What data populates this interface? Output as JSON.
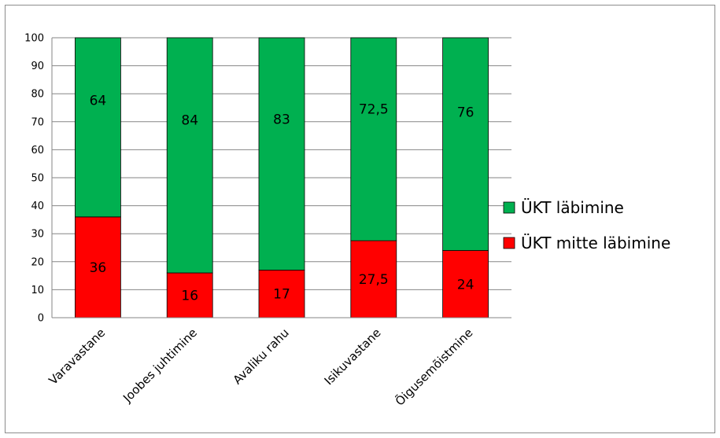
{
  "chart_data": {
    "type": "bar",
    "stacked": true,
    "categories": [
      "Varavastane",
      "Joobes juhtimine",
      "Avaliku rahu",
      "Isikuvastane",
      "Õigusemõistmine"
    ],
    "series": [
      {
        "name": "ÜKT mitte läbimine",
        "color": "#ff0000",
        "values": [
          36,
          16,
          17,
          27.5,
          24
        ],
        "labels": [
          "36",
          "16",
          "17",
          "27,5",
          "24"
        ]
      },
      {
        "name": "ÜKT läbimine",
        "color": "#00b050",
        "values": [
          64,
          84,
          83,
          72.5,
          76
        ],
        "labels": [
          "64",
          "84",
          "83",
          "72,5",
          "76"
        ]
      }
    ],
    "ylim": [
      0,
      100
    ],
    "yticks": [
      "0",
      "10",
      "20",
      "30",
      "40",
      "50",
      "60",
      "70",
      "80",
      "90",
      "100"
    ],
    "grid": true,
    "legend": "right",
    "legend_order": [
      "ÜKT läbimine",
      "ÜKT mitte läbimine"
    ]
  }
}
